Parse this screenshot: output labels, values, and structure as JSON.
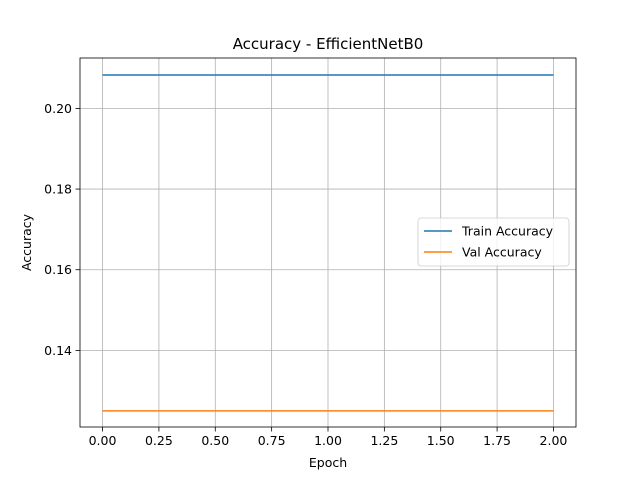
{
  "chart_data": {
    "type": "line",
    "title": "Accuracy - EfficientNetB0",
    "xlabel": "Epoch",
    "ylabel": "Accuracy",
    "xlim": [
      -0.1,
      2.1
    ],
    "ylim": [
      0.121,
      0.2125
    ],
    "xticks": [
      0.0,
      0.25,
      0.5,
      0.75,
      1.0,
      1.25,
      1.5,
      1.75,
      2.0
    ],
    "xtick_labels": [
      "0.00",
      "0.25",
      "0.50",
      "0.75",
      "1.00",
      "1.25",
      "1.50",
      "1.75",
      "2.00"
    ],
    "yticks": [
      0.14,
      0.16,
      0.18,
      0.2
    ],
    "ytick_labels": [
      "0.14",
      "0.16",
      "0.18",
      "0.20"
    ],
    "grid": true,
    "legend_position": "center-right",
    "series": [
      {
        "name": "Train Accuracy",
        "color": "#1f77b4",
        "x": [
          0,
          1,
          2
        ],
        "y": [
          0.2083,
          0.2083,
          0.2083
        ]
      },
      {
        "name": "Val Accuracy",
        "color": "#ff7f0e",
        "x": [
          0,
          1,
          2
        ],
        "y": [
          0.125,
          0.125,
          0.125
        ]
      }
    ]
  }
}
